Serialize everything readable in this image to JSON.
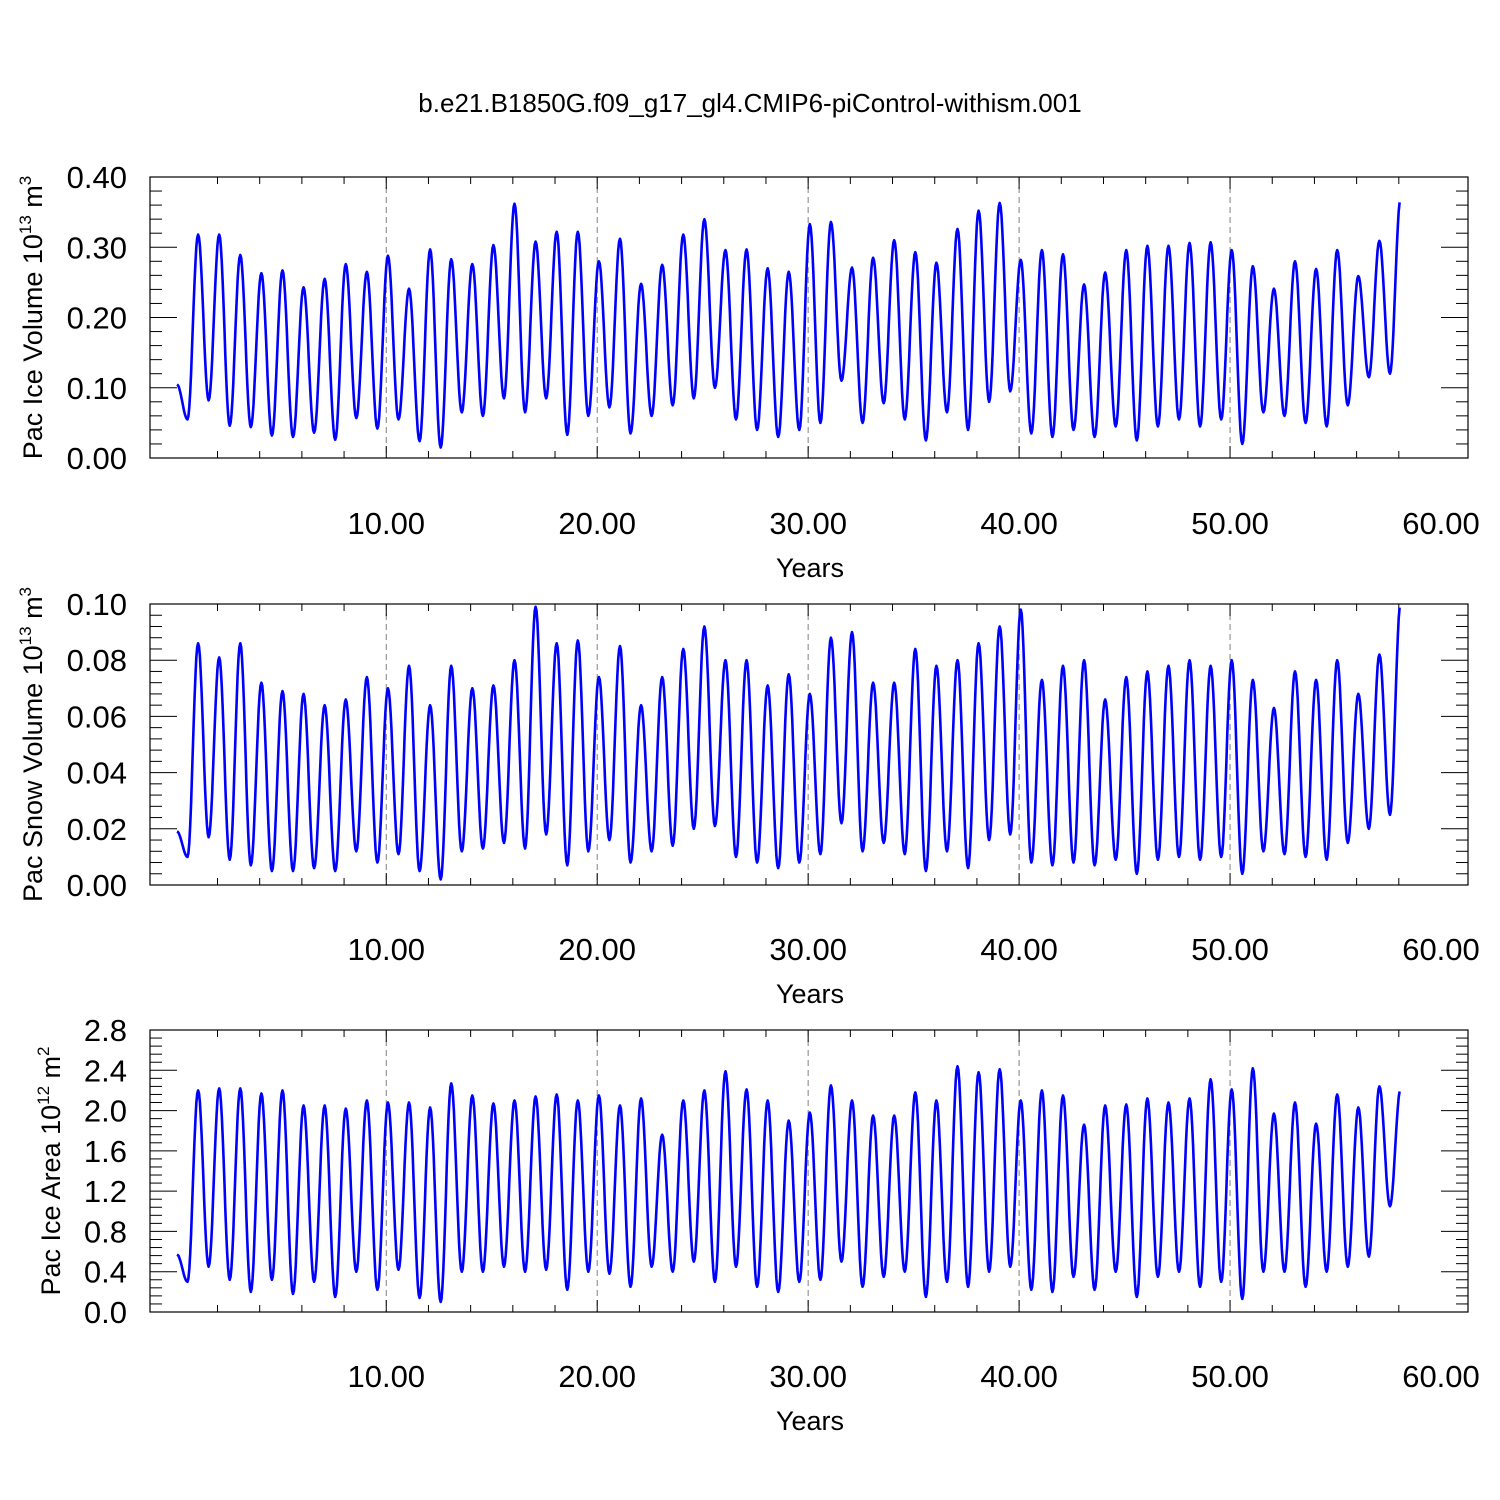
{
  "title": "b.e21.B1850G.f09_g17_gl4.CMIP6-piControl-withism.001",
  "colors": {
    "line": "#0000ff",
    "axis": "#000000",
    "grid": "#808080"
  },
  "chart_data": [
    {
      "type": "line",
      "ylabel": "Pac Ice Volume 10",
      "ylabel_exp": "13",
      "ylabel_unit": " m",
      "ylabel_unit_exp": "3",
      "xlabel": "Years",
      "xlim": [
        0.08,
        60
      ],
      "ylim": [
        0,
        0.4
      ],
      "yticks": [
        0.0,
        0.1,
        0.2,
        0.3,
        0.4
      ],
      "ytick_labels": [
        "0.00",
        "0.10",
        "0.20",
        "0.30",
        "0.40"
      ],
      "xticks": [
        10,
        20,
        30,
        40,
        50,
        60
      ],
      "xtick_labels": [
        "10.00",
        "20.00",
        "30.00",
        "40.00",
        "50.00",
        "60.00"
      ],
      "grid": "vertical dashed at major x ticks",
      "series": [
        {
          "x_start": 0.08,
          "x_step": 1,
          "annual_max": [
            0.318,
            0.318,
            0.289,
            0.263,
            0.267,
            0.243,
            0.255,
            0.276,
            0.265,
            0.288,
            0.241,
            0.297,
            0.283,
            0.276,
            0.303,
            0.362,
            0.308,
            0.322,
            0.322,
            0.28,
            0.312,
            0.248,
            0.275,
            0.318,
            0.34,
            0.296,
            0.297,
            0.27,
            0.265,
            0.333,
            0.336,
            0.271,
            0.285,
            0.31,
            0.293,
            0.278,
            0.326,
            0.352,
            0.363,
            0.282,
            0.296,
            0.29,
            0.247,
            0.264,
            0.296,
            0.302,
            0.302,
            0.306,
            0.307,
            0.296,
            0.273,
            0.241,
            0.28,
            0.269,
            0.296,
            0.259,
            0.309,
            0.368
          ],
          "annual_min": [
            0.055,
            0.082,
            0.046,
            0.044,
            0.032,
            0.03,
            0.036,
            0.026,
            0.057,
            0.042,
            0.055,
            0.024,
            0.015,
            0.065,
            0.06,
            0.085,
            0.065,
            0.085,
            0.033,
            0.06,
            0.072,
            0.035,
            0.06,
            0.075,
            0.085,
            0.1,
            0.055,
            0.04,
            0.03,
            0.04,
            0.05,
            0.11,
            0.05,
            0.078,
            0.055,
            0.025,
            0.065,
            0.04,
            0.08,
            0.095,
            0.035,
            0.03,
            0.04,
            0.03,
            0.045,
            0.025,
            0.045,
            0.055,
            0.045,
            0.055,
            0.02,
            0.065,
            0.06,
            0.05,
            0.045,
            0.075,
            0.115,
            0.12
          ]
        }
      ]
    },
    {
      "type": "line",
      "ylabel": "Pac Snow Volume 10",
      "ylabel_exp": "13",
      "ylabel_unit": " m",
      "ylabel_unit_exp": "3",
      "xlabel": "Years",
      "xlim": [
        0.08,
        60
      ],
      "ylim": [
        0,
        0.1
      ],
      "yticks": [
        0.0,
        0.02,
        0.04,
        0.06,
        0.08,
        0.1
      ],
      "ytick_labels": [
        "0.00",
        "0.02",
        "0.04",
        "0.06",
        "0.08",
        "0.10"
      ],
      "xticks": [
        10,
        20,
        30,
        40,
        50,
        60
      ],
      "xtick_labels": [
        "10.00",
        "20.00",
        "30.00",
        "40.00",
        "50.00",
        "60.00"
      ],
      "grid": "vertical dashed at major x ticks",
      "series": [
        {
          "x_start": 0.08,
          "x_step": 1,
          "annual_max": [
            0.086,
            0.081,
            0.086,
            0.072,
            0.069,
            0.068,
            0.064,
            0.066,
            0.074,
            0.07,
            0.078,
            0.064,
            0.078,
            0.07,
            0.071,
            0.08,
            0.099,
            0.086,
            0.087,
            0.074,
            0.085,
            0.064,
            0.074,
            0.084,
            0.092,
            0.08,
            0.08,
            0.071,
            0.075,
            0.068,
            0.088,
            0.09,
            0.072,
            0.072,
            0.084,
            0.078,
            0.08,
            0.086,
            0.092,
            0.098,
            0.073,
            0.078,
            0.08,
            0.066,
            0.074,
            0.076,
            0.078,
            0.08,
            0.078,
            0.08,
            0.073,
            0.063,
            0.076,
            0.073,
            0.08,
            0.068,
            0.082,
            0.1
          ],
          "annual_min": [
            0.01,
            0.017,
            0.009,
            0.007,
            0.005,
            0.005,
            0.006,
            0.005,
            0.012,
            0.008,
            0.011,
            0.005,
            0.002,
            0.012,
            0.013,
            0.015,
            0.013,
            0.018,
            0.007,
            0.012,
            0.016,
            0.008,
            0.012,
            0.014,
            0.02,
            0.021,
            0.01,
            0.008,
            0.006,
            0.008,
            0.011,
            0.022,
            0.012,
            0.015,
            0.011,
            0.005,
            0.012,
            0.006,
            0.016,
            0.018,
            0.008,
            0.007,
            0.008,
            0.007,
            0.009,
            0.004,
            0.009,
            0.01,
            0.009,
            0.01,
            0.004,
            0.012,
            0.011,
            0.01,
            0.009,
            0.015,
            0.02,
            0.025
          ]
        }
      ]
    },
    {
      "type": "line",
      "ylabel": "Pac Ice Area 10",
      "ylabel_exp": "12",
      "ylabel_unit": " m",
      "ylabel_unit_exp": "2",
      "xlabel": "Years",
      "xlim": [
        0.08,
        60
      ],
      "ylim": [
        0,
        2.8
      ],
      "yticks": [
        0.0,
        0.4,
        0.8,
        1.2,
        1.6,
        2.0,
        2.4,
        2.8
      ],
      "ytick_labels": [
        "0.0",
        "0.4",
        "0.8",
        "1.2",
        "1.6",
        "2.0",
        "2.4",
        "2.8"
      ],
      "xticks": [
        10,
        20,
        30,
        40,
        50,
        60
      ],
      "xtick_labels": [
        "10.00",
        "20.00",
        "30.00",
        "40.00",
        "50.00",
        "60.00"
      ],
      "grid": "vertical dashed at major x ticks",
      "series": [
        {
          "x_start": 0.08,
          "x_step": 1,
          "annual_max": [
            2.2,
            2.22,
            2.22,
            2.17,
            2.2,
            2.05,
            2.05,
            2.02,
            2.1,
            2.08,
            2.08,
            2.03,
            2.27,
            2.15,
            2.07,
            2.1,
            2.14,
            2.16,
            2.1,
            2.15,
            2.05,
            2.12,
            1.76,
            2.1,
            2.2,
            2.39,
            2.21,
            2.1,
            1.9,
            1.98,
            2.25,
            2.1,
            1.95,
            1.95,
            2.18,
            2.1,
            2.44,
            2.38,
            2.41,
            2.1,
            2.2,
            2.15,
            1.86,
            2.05,
            2.06,
            2.12,
            2.08,
            2.12,
            2.31,
            2.21,
            2.42,
            1.97,
            2.08,
            1.87,
            2.16,
            2.03,
            2.24,
            2.21
          ],
          "annual_min": [
            0.3,
            0.45,
            0.32,
            0.2,
            0.32,
            0.18,
            0.3,
            0.15,
            0.4,
            0.22,
            0.42,
            0.14,
            0.1,
            0.4,
            0.4,
            0.45,
            0.4,
            0.42,
            0.22,
            0.4,
            0.38,
            0.25,
            0.45,
            0.4,
            0.5,
            0.3,
            0.45,
            0.25,
            0.2,
            0.3,
            0.32,
            0.5,
            0.25,
            0.35,
            0.4,
            0.15,
            0.3,
            0.25,
            0.4,
            0.45,
            0.22,
            0.2,
            0.35,
            0.22,
            0.4,
            0.15,
            0.35,
            0.4,
            0.25,
            0.3,
            0.13,
            0.4,
            0.4,
            0.25,
            0.4,
            0.45,
            0.55,
            1.05
          ]
        }
      ]
    }
  ]
}
